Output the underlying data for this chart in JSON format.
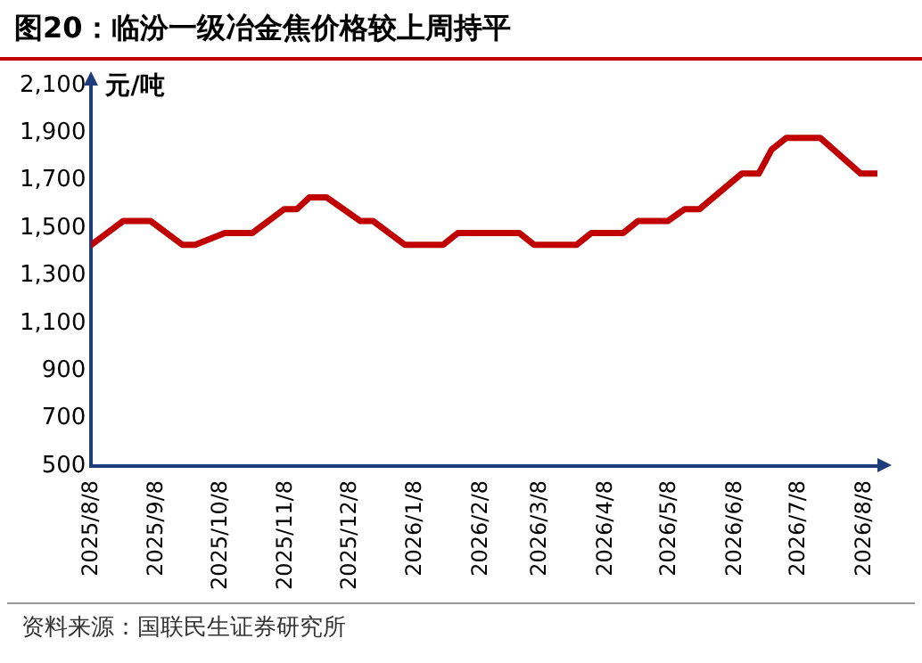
{
  "chart_data": {
    "type": "line",
    "title": "图20：临汾一级冶金焦价格较上周持平",
    "ylabel": "元/吨",
    "x": [
      "2025-08-08",
      "2025-08-23",
      "2025-09-05",
      "2025-09-20",
      "2025-09-26",
      "2025-10-10",
      "2025-10-23",
      "2025-11-07",
      "2025-11-13",
      "2025-11-19",
      "2025-11-27",
      "2025-12-13",
      "2025-12-19",
      "2026-01-03",
      "2026-01-21",
      "2026-01-28",
      "2026-02-26",
      "2026-03-05",
      "2026-03-25",
      "2026-04-01",
      "2026-04-16",
      "2026-04-23",
      "2026-05-07",
      "2026-05-15",
      "2026-05-22",
      "2026-06-11",
      "2026-06-19",
      "2026-06-25",
      "2026-07-02",
      "2026-07-18",
      "2026-08-06",
      "2026-08-14"
    ],
    "series": [
      {
        "color": "#c00000",
        "values": [
          1430,
          1530,
          1530,
          1430,
          1430,
          1480,
          1480,
          1580,
          1580,
          1630,
          1630,
          1530,
          1530,
          1430,
          1430,
          1480,
          1480,
          1430,
          1430,
          1480,
          1480,
          1530,
          1530,
          1580,
          1580,
          1730,
          1730,
          1830,
          1880,
          1880,
          1730,
          1730
        ]
      }
    ],
    "xlim": [
      "2025-08-08",
      "2026-08-14"
    ],
    "xticks": [
      {
        "value": "2025-08-08",
        "label": "2025/8/8"
      },
      {
        "value": "2025-09-08",
        "label": "2025/9/8"
      },
      {
        "value": "2025-10-08",
        "label": "2025/10/8"
      },
      {
        "value": "2025-11-08",
        "label": "2025/11/8"
      },
      {
        "value": "2025-12-08",
        "label": "2025/12/8"
      },
      {
        "value": "2026-01-08",
        "label": "2026/1/8"
      },
      {
        "value": "2026-02-08",
        "label": "2026/2/8"
      },
      {
        "value": "2026-03-08",
        "label": "2026/3/8"
      },
      {
        "value": "2026-04-08",
        "label": "2026/4/8"
      },
      {
        "value": "2026-05-08",
        "label": "2026/5/8"
      },
      {
        "value": "2026-06-08",
        "label": "2026/6/8"
      },
      {
        "value": "2026-07-08",
        "label": "2026/7/8"
      },
      {
        "value": "2026-08-08",
        "label": "2026/8/8"
      }
    ],
    "ylim": [
      500,
      2100
    ],
    "yticks": [
      {
        "value": 500,
        "label": "500"
      },
      {
        "value": 700,
        "label": "700"
      },
      {
        "value": 900,
        "label": "900"
      },
      {
        "value": 1100,
        "label": "1,100"
      },
      {
        "value": 1300,
        "label": "1,300"
      },
      {
        "value": 1500,
        "label": "1,500"
      },
      {
        "value": 1700,
        "label": "1,700"
      },
      {
        "value": 1900,
        "label": "1,900"
      },
      {
        "value": 2100,
        "label": "2,100"
      }
    ],
    "grid": false,
    "legend": false,
    "marker": "none",
    "line_style": "solid",
    "annotations": [
      "资料来源：国联民生证券研究所"
    ]
  }
}
